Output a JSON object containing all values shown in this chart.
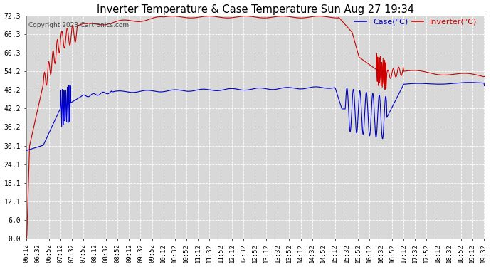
{
  "title": "Inverter Temperature & Case Temperature Sun Aug 27 19:34",
  "copyright": "Copyright 2023 Cartronics.com",
  "legend_case": "Case(°C)",
  "legend_inverter": "Inverter(°C)",
  "yticks": [
    0.0,
    6.0,
    12.1,
    18.1,
    24.1,
    30.1,
    36.2,
    42.2,
    48.2,
    54.2,
    60.3,
    66.3,
    72.3
  ],
  "ymin": 0.0,
  "ymax": 72.3,
  "bg_color": "#ffffff",
  "plot_bg_color": "#d8d8d8",
  "grid_color": "#ffffff",
  "case_color": "#0000cc",
  "inverter_color": "#cc0000",
  "title_color": "#000000",
  "copyright_color": "#444444"
}
